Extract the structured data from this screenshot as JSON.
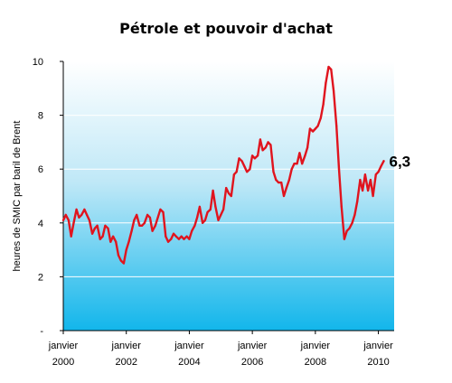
{
  "chart_data": {
    "type": "line",
    "title": "Pétrole et pouvoir d'achat",
    "xlabel": "",
    "ylabel": "heures de SMIC par baril de Brent",
    "xlim": [
      2000.0,
      2010.5
    ],
    "ylim": [
      0,
      10
    ],
    "y_ticks": [
      {
        "value": 0,
        "label": "-"
      },
      {
        "value": 2,
        "label": "2"
      },
      {
        "value": 4,
        "label": "4"
      },
      {
        "value": 6,
        "label": "6"
      },
      {
        "value": 8,
        "label": "8"
      },
      {
        "value": 10,
        "label": "10"
      }
    ],
    "x_ticks": [
      {
        "value": 2000,
        "month": "janvier",
        "year": "2000"
      },
      {
        "value": 2002,
        "month": "janvier",
        "year": "2002"
      },
      {
        "value": 2004,
        "month": "janvier",
        "year": "2004"
      },
      {
        "value": 2006,
        "month": "janvier",
        "year": "2006"
      },
      {
        "value": 2008,
        "month": "janvier",
        "year": "2008"
      },
      {
        "value": 2010,
        "month": "janvier",
        "year": "2010"
      }
    ],
    "grid": true,
    "series": [
      {
        "name": "",
        "color": "#e0141e",
        "points": [
          [
            2000.0,
            4.1
          ],
          [
            2000.08,
            4.3
          ],
          [
            2000.17,
            4.1
          ],
          [
            2000.25,
            3.5
          ],
          [
            2000.33,
            4.0
          ],
          [
            2000.42,
            4.5
          ],
          [
            2000.5,
            4.2
          ],
          [
            2000.58,
            4.3
          ],
          [
            2000.67,
            4.5
          ],
          [
            2000.75,
            4.3
          ],
          [
            2000.83,
            4.1
          ],
          [
            2000.92,
            3.6
          ],
          [
            2001.0,
            3.8
          ],
          [
            2001.08,
            3.9
          ],
          [
            2001.17,
            3.4
          ],
          [
            2001.25,
            3.5
          ],
          [
            2001.33,
            3.9
          ],
          [
            2001.42,
            3.8
          ],
          [
            2001.5,
            3.3
          ],
          [
            2001.58,
            3.5
          ],
          [
            2001.67,
            3.3
          ],
          [
            2001.75,
            2.8
          ],
          [
            2001.83,
            2.6
          ],
          [
            2001.92,
            2.5
          ],
          [
            2002.0,
            3.0
          ],
          [
            2002.08,
            3.3
          ],
          [
            2002.17,
            3.7
          ],
          [
            2002.25,
            4.1
          ],
          [
            2002.33,
            4.3
          ],
          [
            2002.42,
            3.9
          ],
          [
            2002.5,
            3.9
          ],
          [
            2002.58,
            4.0
          ],
          [
            2002.67,
            4.3
          ],
          [
            2002.75,
            4.2
          ],
          [
            2002.83,
            3.7
          ],
          [
            2002.92,
            3.9
          ],
          [
            2003.0,
            4.2
          ],
          [
            2003.08,
            4.5
          ],
          [
            2003.17,
            4.4
          ],
          [
            2003.25,
            3.5
          ],
          [
            2003.33,
            3.3
          ],
          [
            2003.42,
            3.4
          ],
          [
            2003.5,
            3.6
          ],
          [
            2003.58,
            3.5
          ],
          [
            2003.67,
            3.4
          ],
          [
            2003.75,
            3.5
          ],
          [
            2003.83,
            3.4
          ],
          [
            2003.92,
            3.5
          ],
          [
            2004.0,
            3.4
          ],
          [
            2004.08,
            3.7
          ],
          [
            2004.17,
            3.9
          ],
          [
            2004.25,
            4.2
          ],
          [
            2004.33,
            4.6
          ],
          [
            2004.42,
            4.0
          ],
          [
            2004.5,
            4.1
          ],
          [
            2004.58,
            4.4
          ],
          [
            2004.67,
            4.5
          ],
          [
            2004.75,
            5.2
          ],
          [
            2004.83,
            4.6
          ],
          [
            2004.92,
            4.1
          ],
          [
            2005.0,
            4.3
          ],
          [
            2005.08,
            4.5
          ],
          [
            2005.17,
            5.3
          ],
          [
            2005.25,
            5.1
          ],
          [
            2005.33,
            5.0
          ],
          [
            2005.42,
            5.8
          ],
          [
            2005.5,
            5.9
          ],
          [
            2005.58,
            6.4
          ],
          [
            2005.67,
            6.3
          ],
          [
            2005.75,
            6.1
          ],
          [
            2005.83,
            5.9
          ],
          [
            2005.92,
            6.0
          ],
          [
            2006.0,
            6.5
          ],
          [
            2006.08,
            6.4
          ],
          [
            2006.17,
            6.5
          ],
          [
            2006.25,
            7.1
          ],
          [
            2006.33,
            6.7
          ],
          [
            2006.42,
            6.8
          ],
          [
            2006.5,
            7.0
          ],
          [
            2006.58,
            6.9
          ],
          [
            2006.67,
            5.9
          ],
          [
            2006.75,
            5.6
          ],
          [
            2006.83,
            5.5
          ],
          [
            2006.92,
            5.5
          ],
          [
            2007.0,
            5.0
          ],
          [
            2007.08,
            5.3
          ],
          [
            2007.17,
            5.6
          ],
          [
            2007.25,
            6.0
          ],
          [
            2007.33,
            6.2
          ],
          [
            2007.42,
            6.2
          ],
          [
            2007.5,
            6.6
          ],
          [
            2007.58,
            6.2
          ],
          [
            2007.67,
            6.5
          ],
          [
            2007.75,
            6.8
          ],
          [
            2007.83,
            7.5
          ],
          [
            2007.92,
            7.4
          ],
          [
            2008.0,
            7.5
          ],
          [
            2008.08,
            7.6
          ],
          [
            2008.17,
            7.9
          ],
          [
            2008.25,
            8.4
          ],
          [
            2008.33,
            9.2
          ],
          [
            2008.42,
            9.8
          ],
          [
            2008.5,
            9.7
          ],
          [
            2008.58,
            8.9
          ],
          [
            2008.67,
            7.6
          ],
          [
            2008.75,
            6.0
          ],
          [
            2008.83,
            4.6
          ],
          [
            2008.92,
            3.4
          ],
          [
            2009.0,
            3.7
          ],
          [
            2009.08,
            3.8
          ],
          [
            2009.17,
            4.0
          ],
          [
            2009.25,
            4.3
          ],
          [
            2009.33,
            4.8
          ],
          [
            2009.42,
            5.6
          ],
          [
            2009.5,
            5.2
          ],
          [
            2009.58,
            5.8
          ],
          [
            2009.67,
            5.2
          ],
          [
            2009.75,
            5.6
          ],
          [
            2009.83,
            5.0
          ],
          [
            2009.92,
            5.8
          ],
          [
            2010.0,
            5.9
          ],
          [
            2010.08,
            6.1
          ],
          [
            2010.17,
            6.3
          ]
        ],
        "end_label": "6,3"
      }
    ]
  }
}
